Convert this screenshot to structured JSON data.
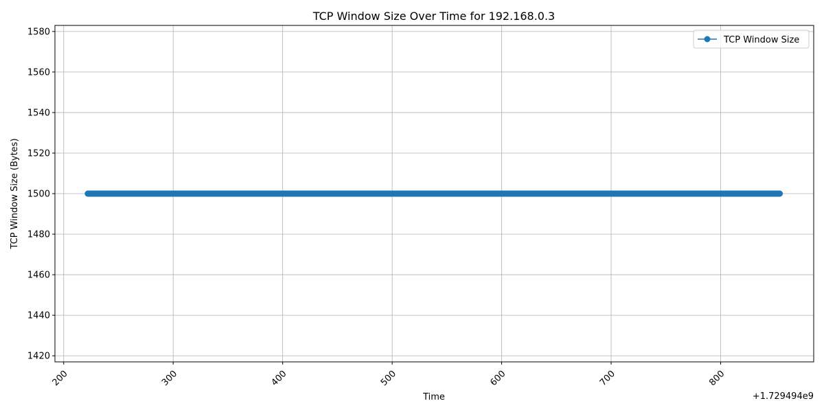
{
  "chart_data": {
    "type": "line",
    "title": "TCP Window Size Over Time for 192.168.0.3",
    "xlabel": "Time",
    "ylabel": "TCP Window Size (Bytes)",
    "x_offset_text": "+1.729494e9",
    "xlim": [
      192,
      885
    ],
    "ylim": [
      1417,
      1583
    ],
    "x_ticks": [
      200,
      300,
      400,
      500,
      600,
      700,
      800
    ],
    "x_tick_labels": [
      "200",
      "300",
      "400",
      "500",
      "600",
      "700",
      "800"
    ],
    "y_ticks": [
      1420,
      1440,
      1460,
      1480,
      1500,
      1520,
      1540,
      1560,
      1580
    ],
    "y_tick_labels": [
      "1420",
      "1440",
      "1460",
      "1480",
      "1500",
      "1520",
      "1540",
      "1560",
      "1580"
    ],
    "grid": true,
    "legend_position": "top-right",
    "series": [
      {
        "name": "TCP Window Size",
        "color": "#1f77b4",
        "marker": "circle",
        "x_start": 222,
        "x_end": 854,
        "x_step": 0.5,
        "y_constant": 1500
      }
    ]
  }
}
